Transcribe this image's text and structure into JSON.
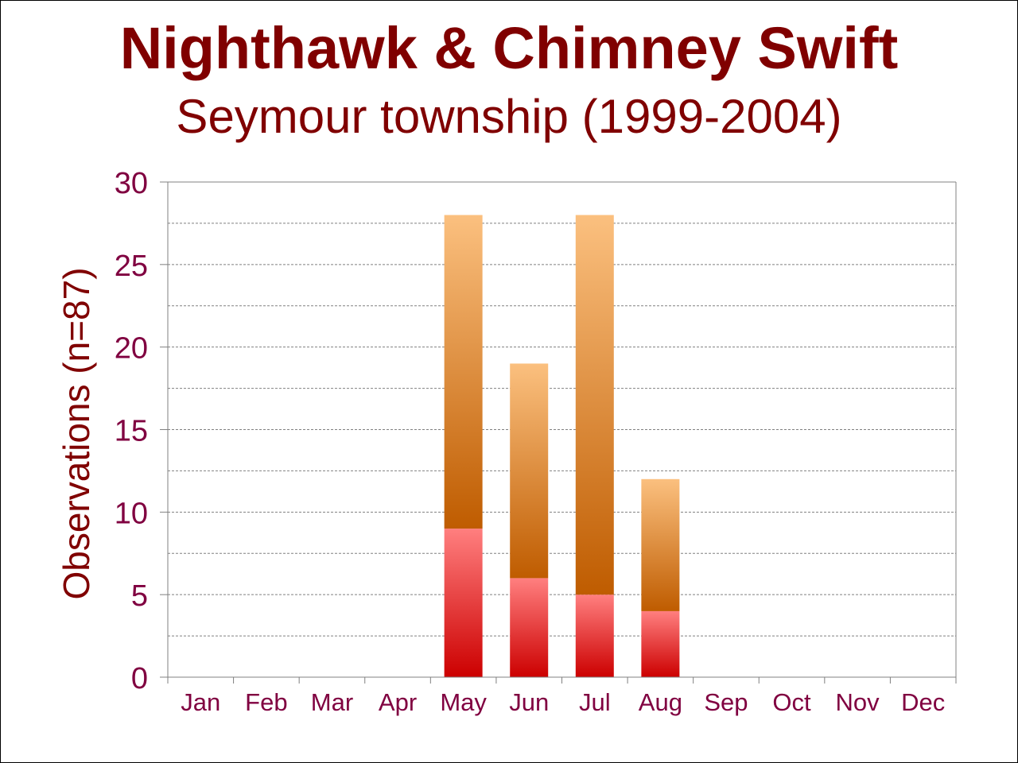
{
  "colors": {
    "title": "#800000",
    "axis_text": "#800040",
    "ylabel": "#800000",
    "grid": "#808080",
    "axis": "#808080",
    "nighthawk_dark": "#CC0000",
    "nighthawk_light": "#FF7F7F",
    "swift_dark": "#BF5C00",
    "swift_light": "#FBC07F"
  },
  "chart_data": {
    "type": "bar",
    "stacked": true,
    "title": "Nighthawk & Chimney Swift",
    "subtitle": "Seymour township (1999-2004)",
    "xlabel": "",
    "ylabel": "Observations (n=87)",
    "ylim": [
      0,
      30
    ],
    "yticks": [
      "0",
      "5",
      "10",
      "15",
      "20",
      "25",
      "30"
    ],
    "grid": true,
    "legend": "none",
    "categories": [
      "Jan",
      "Feb",
      "Mar",
      "Apr",
      "May",
      "Jun",
      "Jul",
      "Aug",
      "Sep",
      "Oct",
      "Nov",
      "Dec"
    ],
    "series": [
      {
        "values": [
          0,
          0,
          0,
          0,
          9,
          6,
          5,
          4,
          0,
          0,
          0,
          0
        ]
      },
      {
        "values": [
          0,
          0,
          0,
          0,
          19,
          13,
          23,
          8,
          0,
          0,
          0,
          0
        ]
      }
    ]
  }
}
